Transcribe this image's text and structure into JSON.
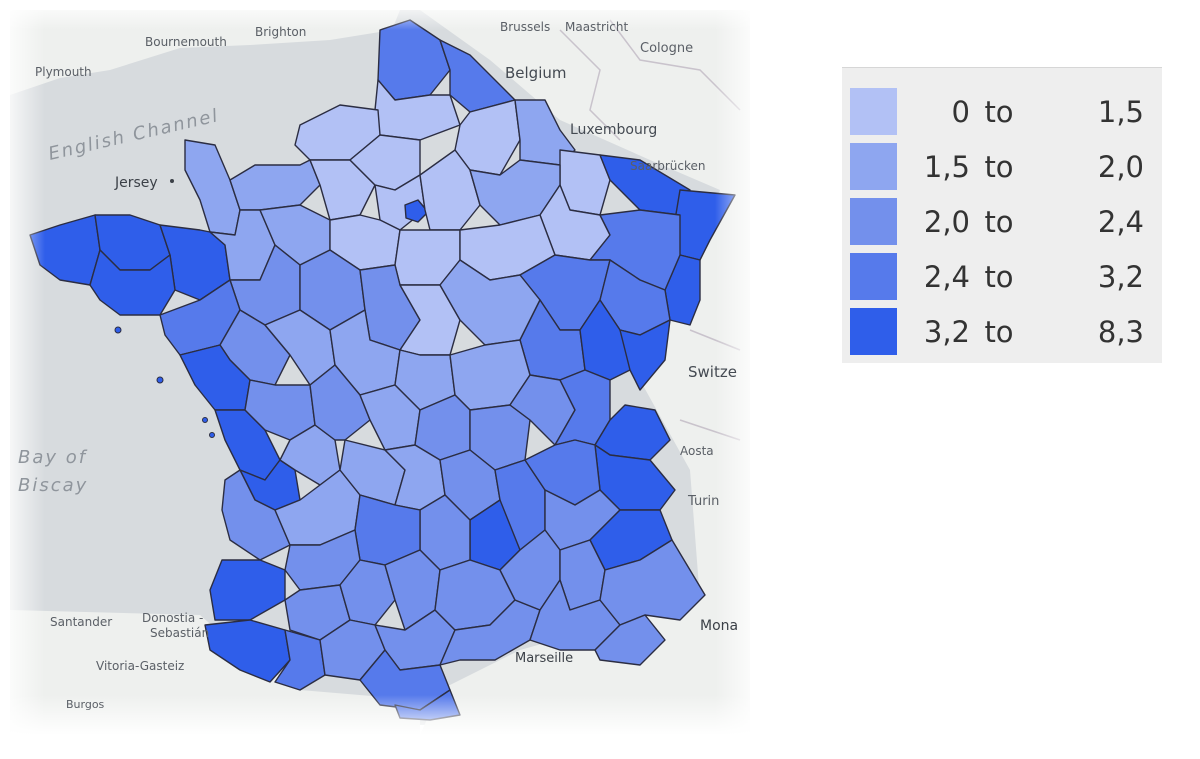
{
  "map": {
    "basemap_labels": [
      {
        "id": "plymouth",
        "text": "Plymouth"
      },
      {
        "id": "bournemouth",
        "text": "Bournemouth"
      },
      {
        "id": "brighton",
        "text": "Brighton"
      },
      {
        "id": "brussels",
        "text": "Brussels"
      },
      {
        "id": "maastricht",
        "text": "Maastricht"
      },
      {
        "id": "cologne",
        "text": "Cologne"
      },
      {
        "id": "belgium",
        "text": "Belgium"
      },
      {
        "id": "english-channel",
        "text": "English Channel"
      },
      {
        "id": "luxembourg",
        "text": "Luxembourg"
      },
      {
        "id": "saarbrucken",
        "text": "Saarbrücken"
      },
      {
        "id": "jersey",
        "text": "Jersey"
      },
      {
        "id": "bay-of-biscay-1",
        "text": "Bay of"
      },
      {
        "id": "bay-of-biscay-2",
        "text": "Biscay"
      },
      {
        "id": "switzerland",
        "text": "Switze"
      },
      {
        "id": "aosta",
        "text": "Aosta"
      },
      {
        "id": "turin",
        "text": "Turin"
      },
      {
        "id": "santander",
        "text": "Santander"
      },
      {
        "id": "donostia",
        "text": "Donostia -"
      },
      {
        "id": "sebastian",
        "text": "Sebastián"
      },
      {
        "id": "vitoria",
        "text": "Vitoria-Gasteiz"
      },
      {
        "id": "burgos",
        "text": "Burgos"
      },
      {
        "id": "marseille",
        "text": "Marseille"
      },
      {
        "id": "monaco",
        "text": "Mona"
      }
    ],
    "region_colors": {
      "c1": "#b2c1f5",
      "c2": "#8ea6f0",
      "c3": "#7390ec",
      "c4": "#567aeb",
      "c5": "#2f5eea",
      "border": "#2b2d42"
    }
  },
  "legend": {
    "items": [
      {
        "min": "0",
        "to": "to",
        "max": "1,5",
        "color": "#b2c1f5"
      },
      {
        "min": "1,5",
        "to": "to",
        "max": "2,0",
        "color": "#8ea6f0"
      },
      {
        "min": "2,0",
        "to": "to",
        "max": "2,4",
        "color": "#7390ec"
      },
      {
        "min": "2,4",
        "to": "to",
        "max": "3,2",
        "color": "#567aeb"
      },
      {
        "min": "3,2",
        "to": "to",
        "max": "8,3",
        "color": "#2f5eea"
      }
    ]
  }
}
